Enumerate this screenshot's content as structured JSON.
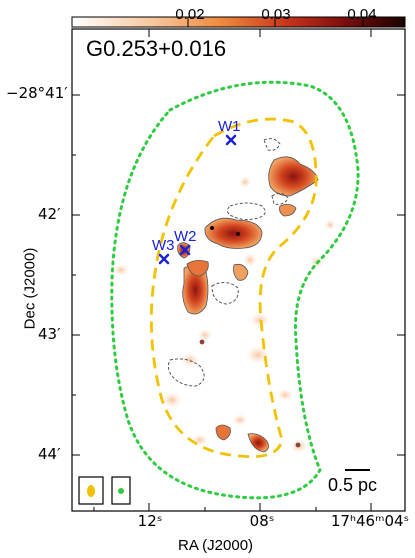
{
  "title": "G0.253+0.016",
  "colorbar": {
    "ticks": [
      "0.02",
      "0.03",
      "0.04"
    ],
    "colormap": [
      "#ffffff",
      "#f7c59a",
      "#ee8a3c",
      "#c7321a",
      "#7a0d0d",
      "#1a0000"
    ]
  },
  "axes": {
    "ylabel": "Dec (J2000)",
    "xlabel": "RA (J2000)",
    "dec_ticks": [
      "−28°41′",
      "42′",
      "43′",
      "44′"
    ],
    "ra_ticks": [
      "12ˢ",
      "08ˢ",
      "17ʰ46ᵐ04ˢ"
    ]
  },
  "markers": [
    {
      "label": "W1"
    },
    {
      "label": "W2"
    },
    {
      "label": "W3"
    }
  ],
  "scalebar": {
    "label": "0.5 pc"
  },
  "colors": {
    "marker": "#1a22d6",
    "dashed_contour": "#f2c200",
    "dotted_contour": "#2ecc40",
    "grey_contour": "#555555"
  }
}
